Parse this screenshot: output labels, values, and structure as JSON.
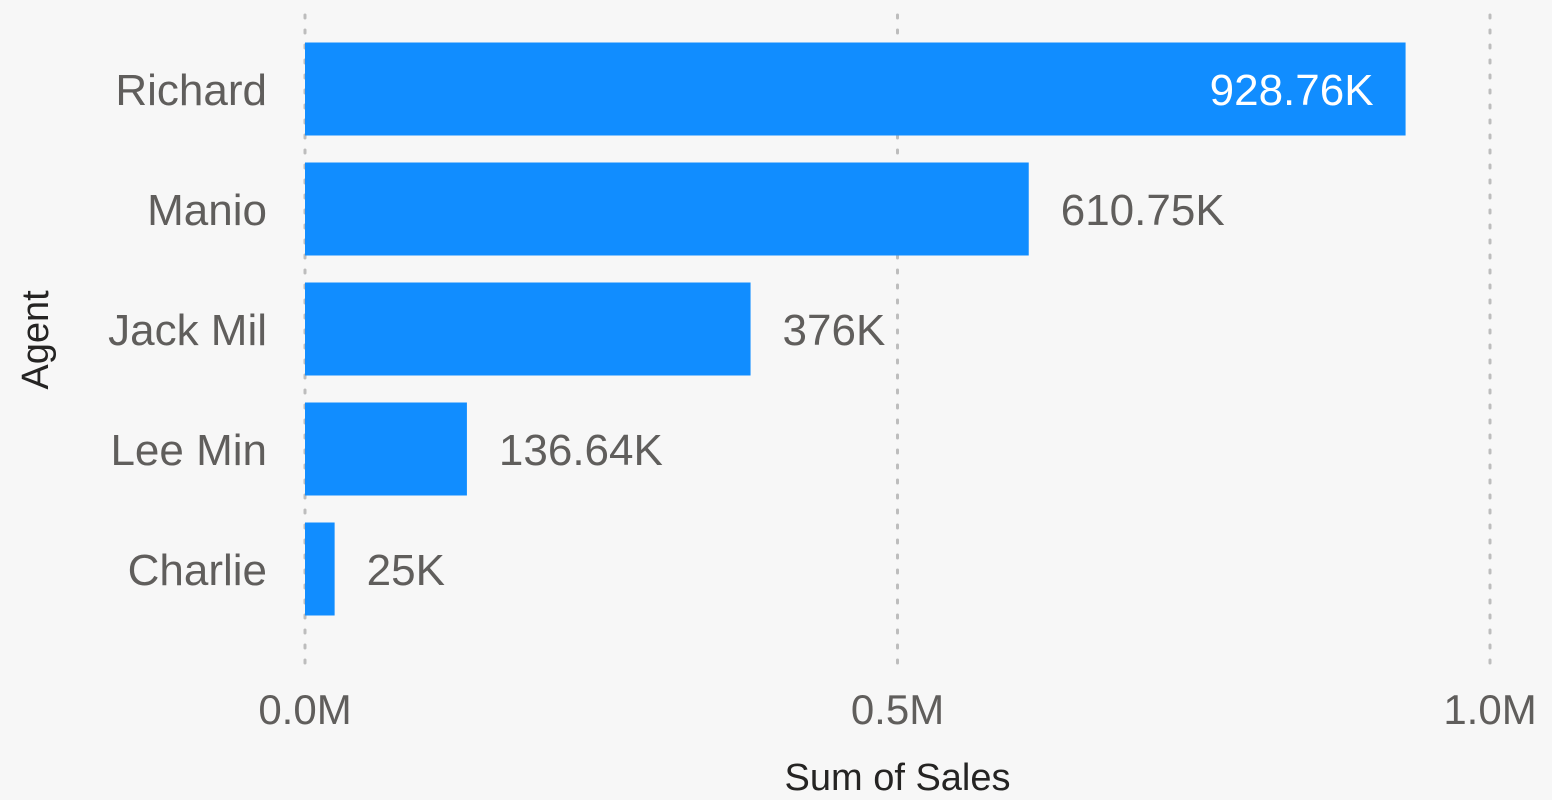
{
  "chart_data": {
    "type": "bar",
    "orientation": "horizontal",
    "categories": [
      "Richard",
      "Manio",
      "Jack Mil",
      "Lee Min",
      "Charlie"
    ],
    "values": [
      928760,
      610750,
      376000,
      136640,
      25000
    ],
    "data_labels": [
      "928.76K",
      "610.75K",
      "376K",
      "136.64K",
      "25K"
    ],
    "xlabel": "Sum of Sales",
    "ylabel": "Agent",
    "xlim": [
      0,
      1000000
    ],
    "x_ticks": [
      0,
      500000,
      1000000
    ],
    "x_tick_labels": [
      "0.0M",
      "0.5M",
      "1.0M"
    ],
    "grid": true,
    "bar_color": "#118dff"
  }
}
